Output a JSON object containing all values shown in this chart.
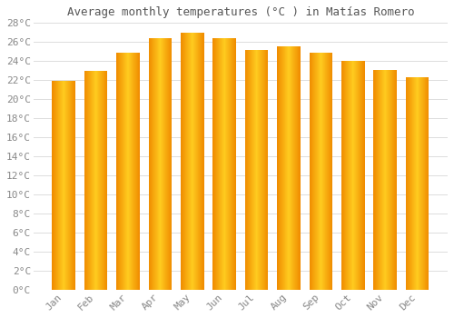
{
  "months": [
    "Jan",
    "Feb",
    "Mar",
    "Apr",
    "May",
    "Jun",
    "Jul",
    "Aug",
    "Sep",
    "Oct",
    "Nov",
    "Dec"
  ],
  "temperatures": [
    21.9,
    23.0,
    24.9,
    26.4,
    27.0,
    26.4,
    25.2,
    25.5,
    24.9,
    24.0,
    23.1,
    22.3
  ],
  "title": "Average monthly temperatures (°C ) in Matías Romero",
  "bar_color_center": "#FFD000",
  "bar_color_edge": "#F5A000",
  "background_color": "#ffffff",
  "grid_color": "#dddddd",
  "ylim": [
    0,
    28
  ],
  "ytick_step": 2,
  "title_fontsize": 9,
  "tick_fontsize": 8,
  "ylabel_suffix": "°C"
}
